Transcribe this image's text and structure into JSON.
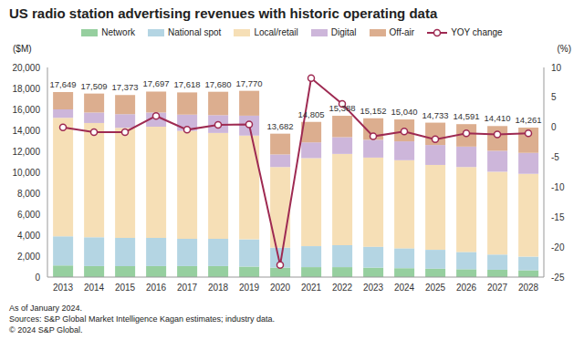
{
  "chart_data": {
    "type": "bar",
    "title": "US radio station advertising revenues with historic operating data",
    "ylabel": "($M)",
    "y2label": "(%)",
    "notes": [
      "As of January 2024.",
      "Sources: S&P Global Market Intelligence Kagan estimates; industry data.",
      "© 2024 S&P Global."
    ],
    "stacked": true,
    "grid": false,
    "categories": [
      "2013",
      "2014",
      "2015",
      "2016",
      "2017",
      "2018",
      "2019",
      "2020",
      "2021",
      "2022",
      "2023",
      "2024",
      "2025",
      "2026",
      "2027",
      "2028"
    ],
    "series": [
      {
        "name": "Network",
        "type": "bar",
        "color": "#96cf9f",
        "values": [
          1100,
          1050,
          1050,
          1050,
          1050,
          1050,
          1000,
          900,
          950,
          950,
          900,
          850,
          800,
          750,
          700,
          650
        ]
      },
      {
        "name": "National spot",
        "type": "bar",
        "color": "#b4d5e3",
        "values": [
          2800,
          2750,
          2700,
          2700,
          2600,
          2600,
          2600,
          1900,
          2000,
          2100,
          2000,
          1900,
          1800,
          1650,
          1450,
          1300
        ]
      },
      {
        "name": "Local/retail",
        "type": "bar",
        "color": "#f6dfb6",
        "values": [
          11300,
          10900,
          10500,
          10600,
          10300,
          10100,
          9900,
          7700,
          8400,
          8700,
          8500,
          8400,
          8100,
          8100,
          7900,
          7900
        ]
      },
      {
        "name": "Digital",
        "type": "bar",
        "color": "#cdb6da",
        "values": [
          800,
          1000,
          1300,
          1350,
          1550,
          1700,
          1900,
          1200,
          1500,
          1600,
          1700,
          1800,
          1900,
          1950,
          2000,
          2000
        ]
      },
      {
        "name": "Off-air",
        "type": "bar",
        "color": "#dcae8f",
        "values": [
          1649,
          1809,
          1823,
          1997,
          2118,
          2230,
          2370,
          1982,
          1955,
          2038,
          2052,
          2090,
          2133,
          2141,
          2360,
          2411
        ]
      },
      {
        "name": "YOY change",
        "type": "line",
        "axis": "y2",
        "color": "#9e2a52",
        "marker": "circle",
        "values": [
          0,
          -0.8,
          -0.8,
          1.9,
          -0.4,
          0.4,
          0.5,
          -23,
          8.2,
          3.9,
          -1.5,
          -0.7,
          -2,
          -1,
          -1.2,
          -1
        ]
      }
    ],
    "totals": [
      17649,
      17509,
      17373,
      17697,
      17618,
      17680,
      17770,
      13682,
      14805,
      15388,
      15152,
      15040,
      14733,
      14591,
      14410,
      14261
    ],
    "total_labels": [
      "17,649",
      "17,509",
      "17,373",
      "17,697",
      "17,618",
      "17,680",
      "17,770",
      "13,682",
      "14,805",
      "15,388",
      "15,152",
      "15,040",
      "14,733",
      "14,591",
      "14,410",
      "14,261"
    ],
    "ylim": [
      0,
      20000
    ],
    "yticks": [
      0,
      {
        "value": 2000,
        "label": "2,000"
      },
      {
        "value": 4000,
        "label": "4,000"
      },
      {
        "value": 6000,
        "label": "6,000"
      },
      {
        "value": 8000,
        "label": "8,000"
      },
      {
        "value": 10000,
        "label": "10,000"
      },
      {
        "value": 12000,
        "label": "12,000"
      },
      {
        "value": 14000,
        "label": "14,000"
      },
      {
        "value": 16000,
        "label": "16,000"
      },
      {
        "value": 18000,
        "label": "18,000"
      },
      {
        "value": 20000,
        "label": "20,000"
      }
    ],
    "y2lim": [
      -25,
      10
    ],
    "y2ticks": [
      -25,
      -20,
      -15,
      -10,
      -5,
      0,
      5,
      10
    ]
  }
}
